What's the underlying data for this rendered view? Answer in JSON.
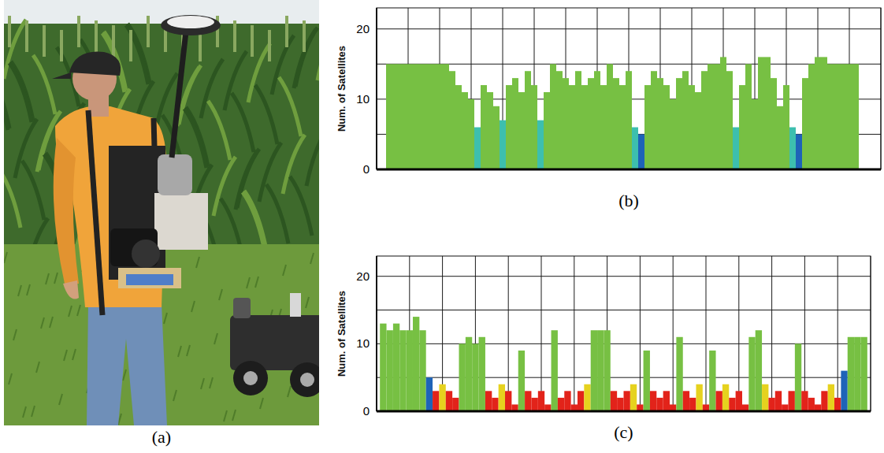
{
  "photo": {
    "caption": "(a)"
  },
  "chart_data": [
    {
      "type": "bar",
      "title": "(b)",
      "y_label": "Num. of Satellites",
      "x": [
        4,
        6,
        8,
        10,
        12,
        14,
        16,
        18,
        20,
        22,
        24,
        26,
        28,
        30,
        32,
        34,
        36,
        38,
        40,
        42,
        44,
        46,
        48,
        50,
        52,
        54,
        56,
        58,
        60,
        62,
        64,
        66,
        68,
        70,
        72,
        74,
        76,
        78,
        80,
        82,
        84,
        86,
        88,
        90,
        92,
        94,
        96,
        98,
        100,
        102,
        104,
        106,
        108,
        110,
        112,
        114,
        116,
        118,
        120,
        122,
        124,
        126,
        128,
        130,
        132,
        134,
        136,
        138,
        140,
        142,
        144,
        146,
        148,
        150,
        152
      ],
      "values": [
        15,
        15,
        15,
        15,
        15,
        15,
        15,
        15,
        15,
        15,
        14,
        12,
        11,
        10,
        6,
        12,
        11,
        9,
        7,
        12,
        13,
        11,
        14,
        12,
        7,
        11,
        15,
        14,
        13,
        12,
        14,
        12,
        13,
        14,
        12,
        15,
        13,
        12,
        14,
        6,
        5,
        12,
        14,
        13,
        12,
        10,
        13,
        14,
        12,
        11,
        14,
        15,
        15,
        16,
        14,
        6,
        12,
        15,
        10,
        16,
        16,
        13,
        9,
        12,
        6,
        5,
        13,
        15,
        16,
        16,
        15,
        15,
        15,
        15,
        15
      ],
      "colors": [
        "#77c043",
        "#77c043",
        "#77c043",
        "#77c043",
        "#77c043",
        "#77c043",
        "#77c043",
        "#77c043",
        "#77c043",
        "#77c043",
        "#77c043",
        "#77c043",
        "#77c043",
        "#77c043",
        "#3dbfae",
        "#77c043",
        "#77c043",
        "#77c043",
        "#3dbfae",
        "#77c043",
        "#77c043",
        "#77c043",
        "#77c043",
        "#77c043",
        "#3dbfae",
        "#77c043",
        "#77c043",
        "#77c043",
        "#77c043",
        "#77c043",
        "#77c043",
        "#77c043",
        "#77c043",
        "#77c043",
        "#77c043",
        "#77c043",
        "#77c043",
        "#77c043",
        "#77c043",
        "#3dbfae",
        "#1e63b8",
        "#77c043",
        "#77c043",
        "#77c043",
        "#77c043",
        "#77c043",
        "#77c043",
        "#77c043",
        "#77c043",
        "#77c043",
        "#77c043",
        "#77c043",
        "#77c043",
        "#77c043",
        "#77c043",
        "#3dbfae",
        "#77c043",
        "#77c043",
        "#77c043",
        "#77c043",
        "#77c043",
        "#77c043",
        "#77c043",
        "#77c043",
        "#3dbfae",
        "#1e63b8",
        "#77c043",
        "#77c043",
        "#77c043",
        "#77c043",
        "#77c043",
        "#77c043",
        "#77c043",
        "#77c043",
        "#77c043"
      ],
      "xlim": [
        0,
        160
      ],
      "xticks": [
        0,
        10,
        20,
        30,
        40,
        50,
        60,
        70,
        80,
        90,
        100,
        110,
        120,
        130,
        140,
        150,
        160
      ],
      "ylim": [
        0,
        23
      ],
      "yticks": [
        0,
        10,
        20
      ],
      "grid": true,
      "tick_labels": "y"
    },
    {
      "type": "bar",
      "title": "(c)",
      "y_label": "Num. of Satellites",
      "x": [
        2,
        4,
        6,
        8,
        10,
        12,
        14,
        16,
        18,
        20,
        22,
        24,
        26,
        28,
        30,
        32,
        34,
        36,
        38,
        40,
        42,
        44,
        46,
        48,
        50,
        52,
        54,
        56,
        58,
        60,
        62,
        64,
        66,
        68,
        70,
        72,
        74,
        76,
        78,
        80,
        82,
        84,
        86,
        88,
        90,
        92,
        94,
        96,
        98,
        100,
        102,
        104,
        106,
        108,
        110,
        112,
        114,
        116,
        118,
        120,
        122,
        124,
        126,
        128,
        130,
        132,
        134,
        136,
        138,
        140,
        142,
        144,
        146,
        148
      ],
      "values": [
        13,
        12,
        13,
        12,
        12,
        14,
        12,
        5,
        3,
        4,
        3,
        2,
        10,
        11,
        10,
        11,
        3,
        2,
        4,
        3,
        1,
        9,
        3,
        2,
        3,
        1,
        12,
        2,
        3,
        1,
        3,
        4,
        12,
        12,
        12,
        3,
        2,
        3,
        4,
        1,
        9,
        3,
        2,
        3,
        1,
        11,
        3,
        2,
        4,
        1,
        9,
        3,
        4,
        2,
        3,
        1,
        11,
        12,
        4,
        2,
        3,
        1,
        3,
        10,
        3,
        2,
        1,
        3,
        4,
        2,
        6,
        11,
        11,
        11
      ],
      "colors": [
        "#77c043",
        "#77c043",
        "#77c043",
        "#77c043",
        "#77c043",
        "#77c043",
        "#77c043",
        "#1e63b8",
        "#e2231a",
        "#e6d21e",
        "#e2231a",
        "#e2231a",
        "#77c043",
        "#77c043",
        "#77c043",
        "#77c043",
        "#e2231a",
        "#e2231a",
        "#e6d21e",
        "#e2231a",
        "#e2231a",
        "#77c043",
        "#e2231a",
        "#e2231a",
        "#e2231a",
        "#e2231a",
        "#77c043",
        "#e2231a",
        "#e2231a",
        "#e2231a",
        "#e2231a",
        "#e6d21e",
        "#77c043",
        "#77c043",
        "#77c043",
        "#e2231a",
        "#e2231a",
        "#e2231a",
        "#e6d21e",
        "#e2231a",
        "#77c043",
        "#e2231a",
        "#e2231a",
        "#e2231a",
        "#e2231a",
        "#77c043",
        "#e2231a",
        "#e2231a",
        "#e6d21e",
        "#e2231a",
        "#77c043",
        "#e2231a",
        "#e6d21e",
        "#e2231a",
        "#e2231a",
        "#e2231a",
        "#77c043",
        "#77c043",
        "#e6d21e",
        "#e2231a",
        "#e2231a",
        "#e2231a",
        "#e2231a",
        "#77c043",
        "#e2231a",
        "#e2231a",
        "#e2231a",
        "#e2231a",
        "#e6d21e",
        "#e2231a",
        "#1e63b8",
        "#77c043",
        "#77c043",
        "#77c043"
      ],
      "xlim": [
        0,
        150
      ],
      "xticks": [
        0,
        10,
        20,
        30,
        40,
        50,
        60,
        70,
        80,
        90,
        100,
        110,
        120,
        130,
        140,
        150
      ],
      "ylim": [
        0,
        23
      ],
      "yticks": [
        0,
        10,
        20
      ],
      "grid": true,
      "tick_labels": "y"
    }
  ]
}
